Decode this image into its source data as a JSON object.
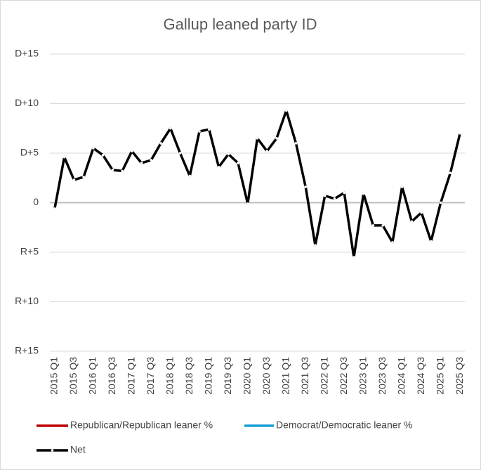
{
  "chart_data": {
    "type": "line",
    "title": "Gallup leaned party ID",
    "categories": [
      "2015 Q1",
      null,
      "2015 Q3",
      null,
      "2016 Q1",
      null,
      "2016 Q3",
      null,
      "2017 Q1",
      null,
      "2017 Q3",
      null,
      "2018 Q1",
      null,
      "2018 Q3",
      null,
      "2019 Q1",
      null,
      "2019 Q3",
      null,
      "2020 Q1",
      null,
      "2020 Q3",
      null,
      "2021 Q1",
      null,
      "2021 Q3",
      null,
      "2022 Q1",
      null,
      "2022 Q3",
      null,
      "2023 Q1",
      null,
      "2023 Q3",
      null,
      "2024 Q1",
      null,
      "2024 Q3",
      null,
      "2025 Q1",
      null,
      "2025 Q3"
    ],
    "series": [
      {
        "name": "Republican/Republican leaner %",
        "color": "#c00000",
        "values": [
          null,
          null,
          null,
          null,
          null,
          null,
          null,
          null,
          null,
          null,
          null,
          null,
          null,
          null,
          null,
          null,
          null,
          null,
          null,
          null,
          null,
          null,
          null,
          null,
          null,
          null,
          null,
          null,
          null,
          null,
          null,
          null,
          null,
          null,
          null,
          null,
          null,
          null,
          null,
          null,
          null,
          null,
          null
        ]
      },
      {
        "name": "Democrat/Democratic leaner %",
        "color": "#1a9fd8",
        "values": [
          null,
          null,
          null,
          null,
          null,
          null,
          null,
          null,
          null,
          null,
          null,
          null,
          null,
          null,
          null,
          null,
          null,
          null,
          null,
          null,
          null,
          null,
          null,
          null,
          null,
          null,
          null,
          null,
          null,
          null,
          null,
          null,
          null,
          null,
          null,
          null,
          null,
          null,
          null,
          null,
          null,
          null,
          null
        ]
      },
      {
        "name": "Net",
        "color": "#000000",
        "values": [
          -0.6,
          4.6,
          2.3,
          2.6,
          5.5,
          4.8,
          3.3,
          3.2,
          5.2,
          4.0,
          4.3,
          6.0,
          7.5,
          5.0,
          2.7,
          7.2,
          7.4,
          3.6,
          4.9,
          4.0,
          -0.1,
          6.5,
          5.2,
          6.5,
          9.3,
          6.0,
          1.6,
          -4.3,
          0.7,
          0.4,
          1.0,
          -5.5,
          0.9,
          -2.3,
          -2.3,
          -4.0,
          1.6,
          -1.9,
          -1.0,
          -3.9,
          0,
          3.0,
          7.0
        ]
      }
    ],
    "ylim": [
      -15,
      15
    ],
    "yticks": [
      {
        "value": -15,
        "label": "R+15"
      },
      {
        "value": -10,
        "label": "R+10"
      },
      {
        "value": -5,
        "label": "R+5"
      },
      0,
      {
        "value": 5,
        "label": "D+5"
      },
      {
        "value": 10,
        "label": "D+10"
      },
      {
        "value": 15,
        "label": "D+15"
      }
    ],
    "grid": true
  }
}
